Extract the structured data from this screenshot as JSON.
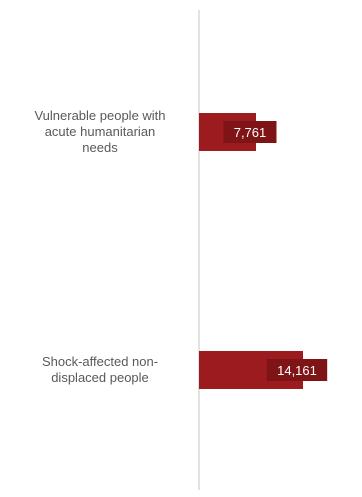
{
  "chart_data": {
    "type": "bar",
    "orientation": "horizontal",
    "categories": [
      [
        "Vulnerable people with",
        "acute humanitarian",
        "needs"
      ],
      [
        "Shock-affected non-",
        "displaced people"
      ]
    ],
    "values": [
      7761,
      14161
    ],
    "value_labels": [
      "7,761",
      "14,161"
    ],
    "xlim": [
      0,
      14161
    ],
    "grid": false,
    "colors": {
      "bar": "#9b1b1e",
      "label_box": "#7f1416",
      "axis": "#d9d9d9",
      "text": "#595959"
    }
  }
}
